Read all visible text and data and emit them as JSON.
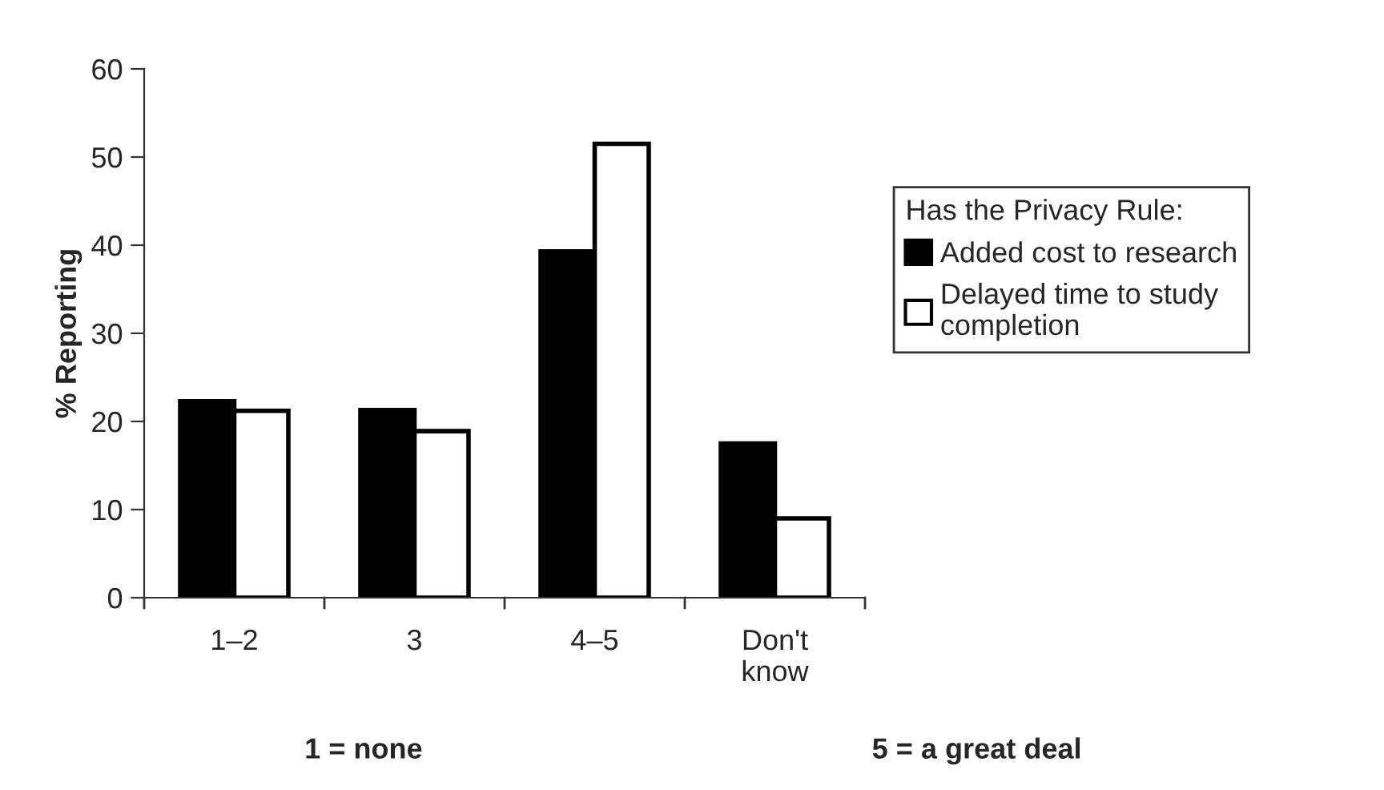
{
  "chart_data": {
    "type": "bar",
    "ylabel": "% Reporting",
    "categories": [
      "1–2",
      "3",
      "4–5",
      "Don't\nknow"
    ],
    "series": [
      {
        "name": "Added cost to research",
        "color": "#000000",
        "values": [
          22.3,
          21.3,
          39.3,
          17.5
        ]
      },
      {
        "name": "Delayed time to study\ncompletion",
        "color": "#ffffff",
        "values": [
          21.2,
          18.9,
          51.5,
          9.0
        ]
      }
    ],
    "legend_title": "Has the Privacy Rule:",
    "legend": "right",
    "ylim": [
      0,
      60
    ],
    "yticks": [
      0,
      10,
      20,
      30,
      40,
      50,
      60
    ],
    "grid": false,
    "annotations": [
      "1 = none",
      "5 = a great deal"
    ]
  }
}
